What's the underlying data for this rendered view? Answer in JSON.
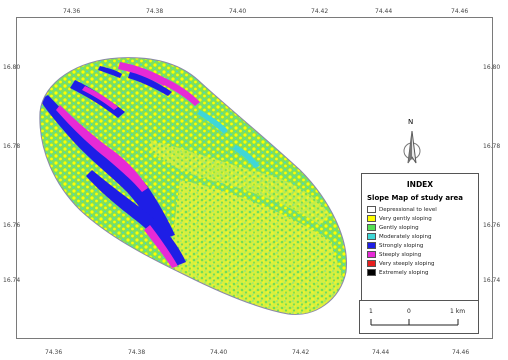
{
  "map": {
    "lon_ticks": [
      "74.36",
      "74.38",
      "74.40",
      "74.42",
      "74.44",
      "74.46"
    ],
    "lat_ticks": [
      "16.80",
      "16.78",
      "16.76",
      "16.74"
    ],
    "north_label": "N"
  },
  "legend": {
    "title": "INDEX",
    "subtitle": "Slope Map of study area",
    "items": [
      {
        "label": "Depressional to level",
        "color": "#ffffff"
      },
      {
        "label": "Very gently sloping",
        "color": "#ffff00"
      },
      {
        "label": "Gently sloping",
        "color": "#55e055"
      },
      {
        "label": "Moderately sloping",
        "color": "#3fd7d7"
      },
      {
        "label": "Strongly sloping",
        "color": "#1e1ee6"
      },
      {
        "label": "Steeply sloping",
        "color": "#e62ad6"
      },
      {
        "label": "Very steeply sloping",
        "color": "#e61e1e"
      },
      {
        "label": "Extremely sloping",
        "color": "#000000"
      }
    ]
  },
  "scale": {
    "left": "1",
    "middle": "0",
    "right": "1 km"
  }
}
